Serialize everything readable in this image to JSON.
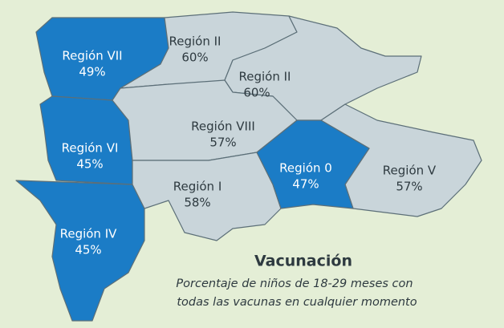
{
  "regions": [
    {
      "name": "Región VII",
      "value": "49%"
    },
    {
      "name": "Región II",
      "value": "60%"
    },
    {
      "name": "Región II",
      "value": "60%"
    },
    {
      "name": "Región VIII",
      "value": "57%"
    },
    {
      "name": "Región VI",
      "value": "45%"
    },
    {
      "name": "Región I",
      "value": "58%"
    },
    {
      "name": "Región 0",
      "value": "47%"
    },
    {
      "name": "Región V",
      "value": "57%"
    },
    {
      "name": "Región IV",
      "value": "45%"
    }
  ],
  "legend": {
    "title": "Vacunación",
    "subtitle": [
      "Porcentaje de niños de 18-29 meses con",
      "todas las vacunas en cualquier momento"
    ]
  }
}
